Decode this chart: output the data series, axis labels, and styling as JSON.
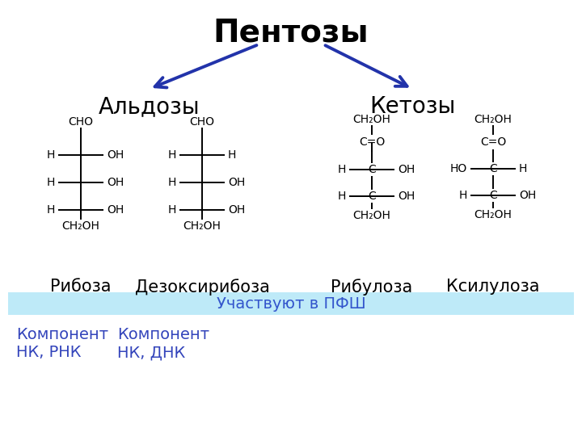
{
  "title": "Пентозы",
  "title_fontsize": 28,
  "arrow_color": "#2233AA",
  "aldoses_label": "Альдозы",
  "ketoses_label": "Кетозы",
  "label_fontsize": 20,
  "ribose_name": "Рибоза",
  "deoxyribose_name": "Дезоксирибоза",
  "ribulose_name": "Рибулоза",
  "xylulose_name": "Ксилулоза",
  "name_fontsize": 15,
  "banner_text": "Участвуют в ПФШ",
  "banner_color": "#beeaf8",
  "banner_text_color": "#3355cc",
  "banner_fontsize": 14,
  "note1": "Компонент\nНК, РНК",
  "note2": "Компонент\nНК, ДНК",
  "note_fontsize": 14,
  "note_color": "#3344bb",
  "struct_color": "#000000",
  "struct_fontsize": 10,
  "bg_color": "#ffffff"
}
